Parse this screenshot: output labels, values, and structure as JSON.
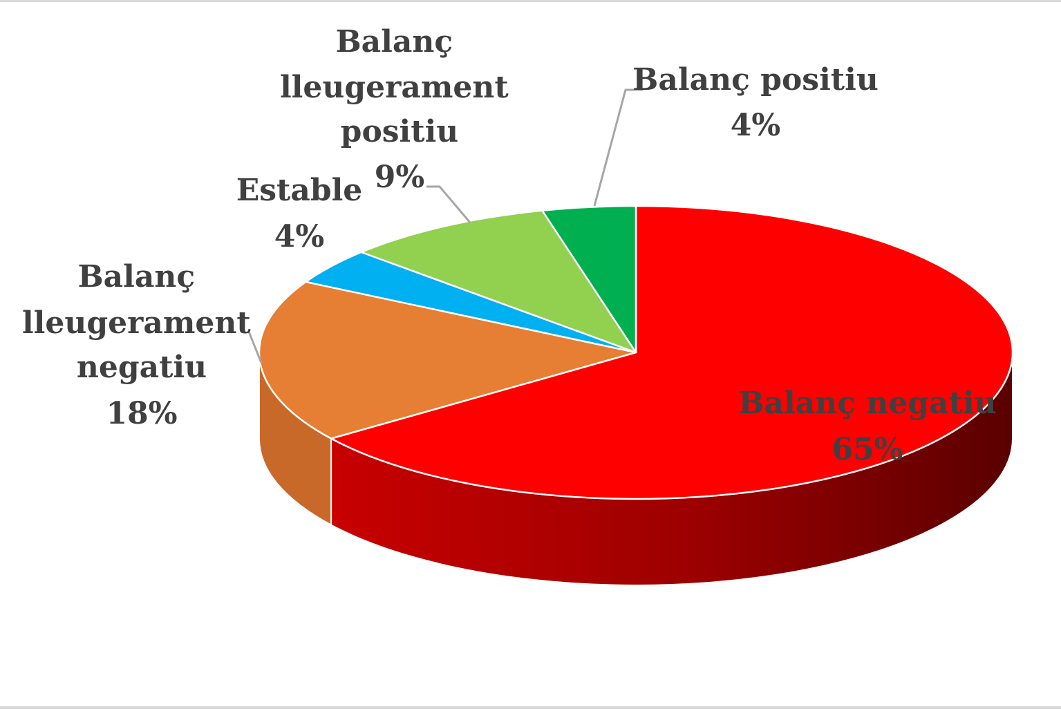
{
  "chart_data": {
    "type": "pie",
    "style": "3d",
    "legend": "none",
    "slices": [
      {
        "name": "Balanç negatiu",
        "value": 65,
        "label": "65%",
        "color": "#ff0000",
        "side_color": "#c00000"
      },
      {
        "name": "Balanç lleugerament negatiu",
        "value": 18,
        "label": "18%",
        "color": "#e67e33",
        "side_color": "#c8692a"
      },
      {
        "name": "Estable",
        "value": 4,
        "label": "4%",
        "color": "#00b0f0",
        "side_color": "#0090c8"
      },
      {
        "name": "Balanç lleugerament positiu",
        "value": 9,
        "label": "9%",
        "color": "#92d050",
        "side_color": "#72b030"
      },
      {
        "name": "Balanç positiu",
        "value": 4,
        "label": "4%",
        "color": "#00b050",
        "side_color": "#008a3e"
      }
    ]
  }
}
